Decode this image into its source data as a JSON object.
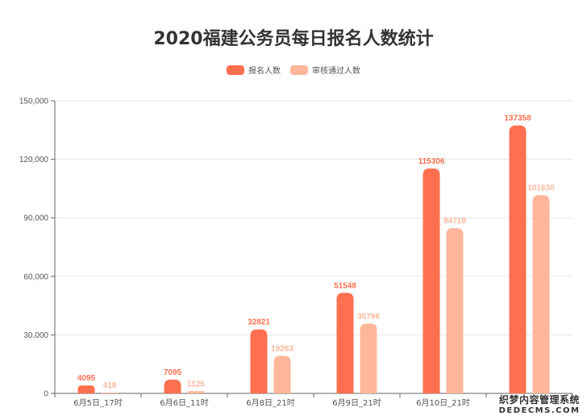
{
  "chart_data": {
    "type": "bar",
    "title": "2020福建公务员每日报名人数统计",
    "categories": [
      "6月5日_17时",
      "6月6日_11时",
      "6月8日_21时",
      "6月9日_21时",
      "6月10日_21时",
      ""
    ],
    "series": [
      {
        "name": "报名人数",
        "values": [
          4095,
          7095,
          32821,
          51548,
          115306,
          137358
        ],
        "color": "#ff7050"
      },
      {
        "name": "审核通过人数",
        "values": [
          418,
          1125,
          19263,
          35796,
          84719,
          101630
        ],
        "color": "#ffb69a"
      }
    ],
    "ylim": [
      0,
      150000
    ],
    "yticks": [
      0,
      30000,
      60000,
      90000,
      120000,
      150000
    ],
    "ytick_labels": [
      "0",
      "30,000",
      "60,000",
      "90,000",
      "120,000",
      "150,000"
    ],
    "xlabel": "",
    "ylabel": "",
    "grid": true,
    "legend_position": "top-center"
  },
  "watermark": {
    "line1": "织梦内容管理系统",
    "line2": "DEDECMS.COM"
  }
}
